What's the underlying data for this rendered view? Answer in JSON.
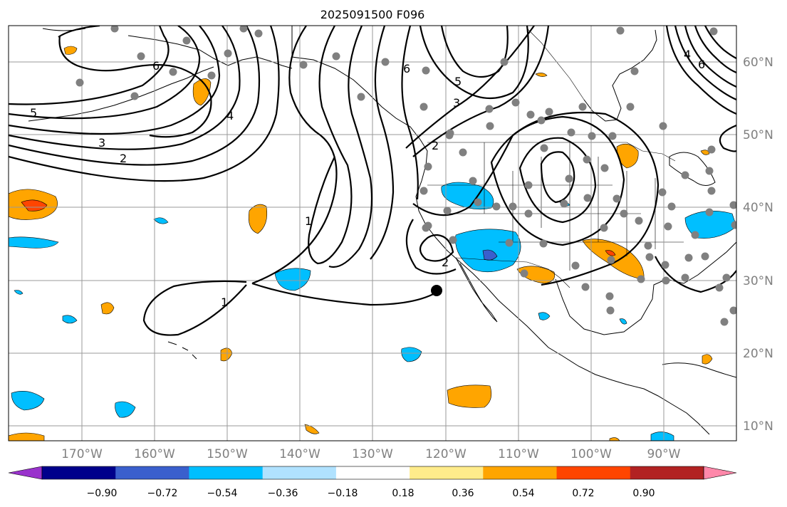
{
  "title": "2025091500 F096",
  "map": {
    "lon_labels": [
      "170°W",
      "160°W",
      "150°W",
      "140°W",
      "130°W",
      "120°W",
      "110°W",
      "100°W",
      "90°W"
    ],
    "lat_labels": [
      "60°N",
      "50°N",
      "40°N",
      "30°N",
      "20°N",
      "10°N"
    ],
    "contour_labels": [
      "6",
      "5",
      "4",
      "3",
      "2",
      "1",
      "1",
      "6",
      "5",
      "3",
      "2",
      "2",
      "4",
      "6"
    ],
    "colors": {
      "contour": "#000000",
      "grid": "#9a9a9a",
      "coast": "#000000",
      "station": "#808080",
      "marker": "#000000"
    }
  },
  "colorbar": {
    "colors": [
      "#9932cc",
      "#00008b",
      "#3a5fcd",
      "#00bfff",
      "#b0e2ff",
      "#ffffff",
      "#ffec8b",
      "#ffa500",
      "#ff4500",
      "#b22222",
      "#ff88aa"
    ],
    "tick_labels": [
      "−0.90",
      "−0.72",
      "−0.54",
      "−0.36",
      "−0.18",
      "0.18",
      "0.36",
      "0.54",
      "0.72",
      "0.90"
    ]
  }
}
